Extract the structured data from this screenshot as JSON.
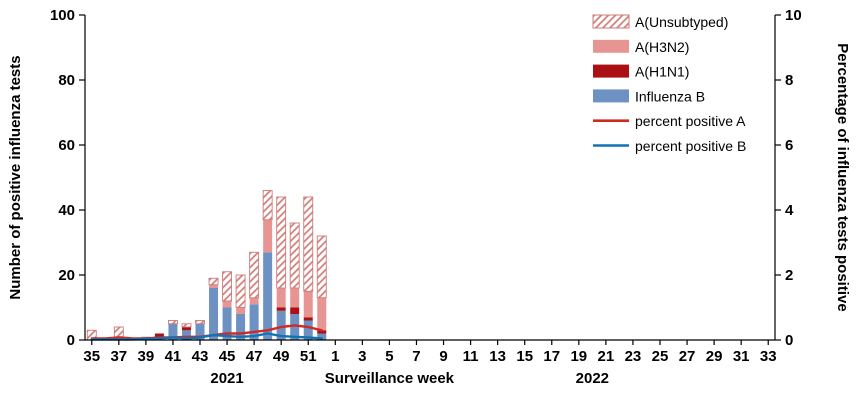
{
  "chart_data": {
    "type": "bar",
    "title": "",
    "left_axis": {
      "label": "Number of positive influenza tests",
      "min": 0,
      "max": 100,
      "ticks": [
        0,
        20,
        40,
        60,
        80,
        100
      ]
    },
    "right_axis": {
      "label": "Percentage of influenza tests positive",
      "min": 0,
      "max": 10,
      "ticks": [
        0,
        2,
        4,
        6,
        8,
        10
      ]
    },
    "x_axis": {
      "label": "Surveillance  week",
      "n_slots": 51,
      "tick_labels": [
        "35",
        "37",
        "39",
        "41",
        "43",
        "45",
        "47",
        "49",
        "51",
        "1",
        "3",
        "5",
        "7",
        "9",
        "11",
        "13",
        "15",
        "17",
        "19",
        "21",
        "23",
        "25",
        "27",
        "29",
        "31",
        "33"
      ],
      "year_labels": [
        {
          "text": "2021",
          "slot": 10
        },
        {
          "text": "2022",
          "slot": 37
        }
      ]
    },
    "bar_series": [
      {
        "name": "Influenza B",
        "color": "#6d91c3",
        "values": [
          0,
          0,
          0,
          0,
          1,
          1,
          5,
          3,
          5,
          16,
          10,
          8,
          11,
          27,
          9,
          8,
          6,
          2,
          0,
          0,
          0,
          0,
          0,
          0,
          0,
          0,
          0,
          0,
          0,
          0,
          0,
          0,
          0,
          0,
          0,
          0,
          0,
          0,
          0,
          0,
          0,
          0,
          0,
          0,
          0,
          0,
          0,
          0,
          0,
          0,
          0
        ]
      },
      {
        "name": "A(H1N1)",
        "color": "#ab1015",
        "values": [
          0,
          0,
          0,
          0,
          0,
          1,
          0,
          1,
          0,
          0,
          0,
          0,
          0,
          0,
          1,
          2,
          1,
          1,
          0,
          0,
          0,
          0,
          0,
          0,
          0,
          0,
          0,
          0,
          0,
          0,
          0,
          0,
          0,
          0,
          0,
          0,
          0,
          0,
          0,
          0,
          0,
          0,
          0,
          0,
          0,
          0,
          0,
          0,
          0,
          0,
          0
        ]
      },
      {
        "name": "A(H3N2)",
        "color": "#e69592",
        "values": [
          0,
          0,
          1,
          0,
          0,
          0,
          0,
          0,
          0,
          1,
          2,
          2,
          2,
          10,
          6,
          6,
          8,
          10,
          0,
          0,
          0,
          0,
          0,
          0,
          0,
          0,
          0,
          0,
          0,
          0,
          0,
          0,
          0,
          0,
          0,
          0,
          0,
          0,
          0,
          0,
          0,
          0,
          0,
          0,
          0,
          0,
          0,
          0,
          0,
          0,
          0
        ]
      },
      {
        "name": "A(Unsubtyped)",
        "color": "hatch",
        "values": [
          3,
          0,
          3,
          0,
          0,
          0,
          1,
          1,
          1,
          2,
          9,
          10,
          14,
          9,
          28,
          20,
          29,
          19,
          0,
          0,
          0,
          0,
          0,
          0,
          0,
          0,
          0,
          0,
          0,
          0,
          0,
          0,
          0,
          0,
          0,
          0,
          0,
          0,
          0,
          0,
          0,
          0,
          0,
          0,
          0,
          0,
          0,
          0,
          0,
          0,
          0
        ]
      }
    ],
    "line_series": [
      {
        "name": "percent positive A",
        "color": "#d02a24",
        "values": [
          0.05,
          0.05,
          0.08,
          0.05,
          0.05,
          0.08,
          0.08,
          0.1,
          0.1,
          0.15,
          0.2,
          0.2,
          0.25,
          0.3,
          0.4,
          0.45,
          0.4,
          0.3,
          null,
          null,
          null,
          null,
          null,
          null,
          null,
          null,
          null,
          null,
          null,
          null,
          null,
          null,
          null,
          null,
          null,
          null,
          null,
          null,
          null,
          null,
          null,
          null,
          null,
          null,
          null,
          null,
          null,
          null,
          null,
          null,
          null
        ]
      },
      {
        "name": "percent positive B",
        "color": "#1273b4",
        "values": [
          0.02,
          0.02,
          0.02,
          0.02,
          0.03,
          0.05,
          0.08,
          0.05,
          0.08,
          0.15,
          0.12,
          0.1,
          0.12,
          0.2,
          0.12,
          0.1,
          0.08,
          0.05,
          null,
          null,
          null,
          null,
          null,
          null,
          null,
          null,
          null,
          null,
          null,
          null,
          null,
          null,
          null,
          null,
          null,
          null,
          null,
          null,
          null,
          null,
          null,
          null,
          null,
          null,
          null,
          null,
          null,
          null,
          null,
          null,
          null
        ]
      }
    ],
    "legend": [
      {
        "label": "A(Unsubtyped)",
        "swatch": "hatch"
      },
      {
        "label": "A(H3N2)",
        "swatch": "#e69592"
      },
      {
        "label": "A(H1N1)",
        "swatch": "#ab1015"
      },
      {
        "label": "Influenza B",
        "swatch": "#6d91c3"
      },
      {
        "label": "percent positive A",
        "swatch": "line:#d02a24"
      },
      {
        "label": "percent positive B",
        "swatch": "line:#1273b4"
      }
    ],
    "hatch": {
      "fill": "#ffffff",
      "stroke": "#cf7b77",
      "border": "#cf7b77"
    },
    "axis_color": "#000000",
    "grid": "off",
    "legend_position": "top-right-inside"
  }
}
